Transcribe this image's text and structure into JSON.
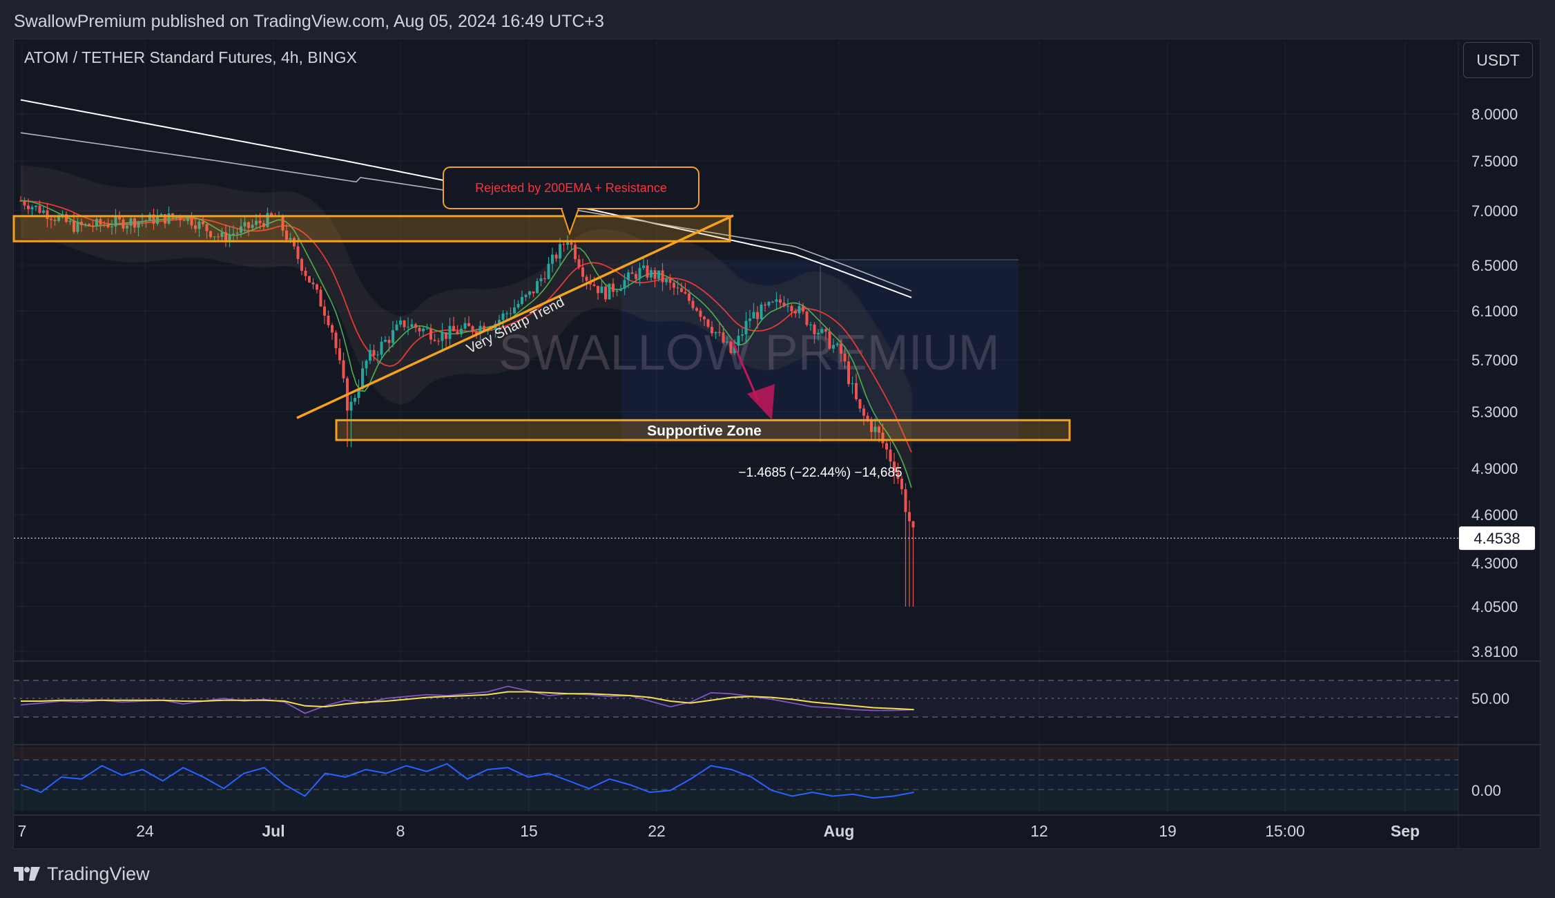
{
  "header": {
    "published": "SwallowPremium published on TradingView.com, Aug 05, 2024 16:49 UTC+3",
    "symbol": "ATOM / TETHER Standard Futures, 4h, BINGX",
    "currency_button": "USDT"
  },
  "footer": {
    "brand": "TradingView",
    "logo_icon": "tradingview-logo-icon"
  },
  "colors": {
    "background": "#131722",
    "up": "#26a69a",
    "down": "#ef5350",
    "zone": "#f7a21b",
    "ema200": "#ffffff",
    "ema_gray": "#b2b5be",
    "ema_red": "#e53935",
    "ema_green": "#4caf50",
    "rsi": "#7e57c2",
    "rsi_ma": "#f5e14b",
    "stoch": "#2962ff",
    "annotation_text": "#f23645"
  },
  "chart_data": [
    {
      "type": "candlestick",
      "title": "ATOM / TETHER Standard Futures, 4h, BINGX",
      "watermark": "SWALLOW PREMIUM",
      "y_ticks": [
        "8.0000",
        "7.5000",
        "7.0000",
        "6.5000",
        "6.1000",
        "5.7000",
        "5.3000",
        "4.9000",
        "4.6000",
        "4.3000",
        "4.0500",
        "3.8100"
      ],
      "x_ticks": [
        "7",
        "24",
        "Jul",
        "8",
        "15",
        "22",
        "Aug",
        "12",
        "19",
        "15:00",
        "Sep"
      ],
      "last_price": "4.4538",
      "ylim": [
        3.75,
        8.3
      ],
      "grid": true,
      "price_path_anchors": [
        {
          "date": "2024-06-17",
          "close": 7.1
        },
        {
          "date": "2024-06-20",
          "close": 6.85
        },
        {
          "date": "2024-06-23",
          "close": 6.9
        },
        {
          "date": "2024-06-26",
          "close": 6.95
        },
        {
          "date": "2024-06-28",
          "close": 6.75
        },
        {
          "date": "2024-07-01",
          "close": 6.95
        },
        {
          "date": "2024-07-04",
          "close": 6.0
        },
        {
          "date": "2024-07-05",
          "close": 5.3
        },
        {
          "date": "2024-07-06",
          "close": 5.7
        },
        {
          "date": "2024-07-08",
          "close": 6.0
        },
        {
          "date": "2024-07-10",
          "close": 5.9
        },
        {
          "date": "2024-07-13",
          "close": 6.0
        },
        {
          "date": "2024-07-15",
          "close": 6.25
        },
        {
          "date": "2024-07-16",
          "close": 6.5
        },
        {
          "date": "2024-07-17",
          "close": 6.75
        },
        {
          "date": "2024-07-18",
          "close": 6.4
        },
        {
          "date": "2024-07-19",
          "close": 6.25
        },
        {
          "date": "2024-07-21",
          "close": 6.45
        },
        {
          "date": "2024-07-22",
          "close": 6.4
        },
        {
          "date": "2024-07-24",
          "close": 6.15
        },
        {
          "date": "2024-07-26",
          "close": 5.75
        },
        {
          "date": "2024-07-27",
          "close": 6.05
        },
        {
          "date": "2024-07-29",
          "close": 6.2
        },
        {
          "date": "2024-07-30",
          "close": 6.05
        },
        {
          "date": "2024-07-31",
          "close": 5.9
        },
        {
          "date": "2024-08-01",
          "close": 5.75
        },
        {
          "date": "2024-08-02",
          "close": 5.3
        },
        {
          "date": "2024-08-03",
          "close": 5.15
        },
        {
          "date": "2024-08-04",
          "close": 4.9
        },
        {
          "date": "2024-08-05",
          "close": 4.45
        }
      ],
      "annotations": {
        "resistance_callout": "Rejected by 200EMA + Resistance",
        "trendline_label": "Very Sharp Trend",
        "support_label": "Supportive Zone",
        "measure_label": "−1.4685 (−22.44%) −14,685",
        "resistance_zone": [
          6.72,
          6.95
        ],
        "support_zone": [
          5.1,
          5.24
        ]
      }
    },
    {
      "type": "line",
      "panel": "RSI",
      "y_ticks": [
        "50.00"
      ],
      "series": [
        {
          "values": [
            43,
            45,
            47,
            46,
            48,
            46,
            47,
            48,
            44,
            47,
            50,
            47,
            49,
            46,
            34,
            42,
            48,
            45,
            50,
            52,
            54,
            53,
            55,
            57,
            63,
            58,
            53,
            55,
            54,
            52,
            53,
            47,
            41,
            46,
            56,
            55,
            52,
            49,
            45,
            41,
            40,
            38,
            37,
            37,
            38
          ]
        },
        {
          "values": [
            47,
            47,
            48,
            48,
            48,
            48,
            48,
            48,
            47,
            47,
            48,
            48,
            48,
            47,
            42,
            41,
            44,
            46,
            47,
            49,
            51,
            52,
            53,
            54,
            57,
            57,
            56,
            55,
            55,
            54,
            53,
            51,
            47,
            45,
            48,
            51,
            52,
            51,
            49,
            46,
            44,
            42,
            40,
            39,
            38
          ]
        }
      ]
    },
    {
      "type": "line",
      "panel": "Stochastic",
      "y_ticks": [
        "0.00"
      ],
      "series": [
        {
          "values": [
            40,
            20,
            60,
            55,
            90,
            65,
            80,
            50,
            85,
            60,
            30,
            70,
            85,
            40,
            10,
            70,
            60,
            80,
            70,
            90,
            75,
            95,
            55,
            80,
            85,
            60,
            70,
            50,
            30,
            55,
            40,
            20,
            25,
            55,
            90,
            80,
            60,
            25,
            10,
            20,
            10,
            15,
            5,
            10,
            20
          ]
        }
      ]
    }
  ]
}
